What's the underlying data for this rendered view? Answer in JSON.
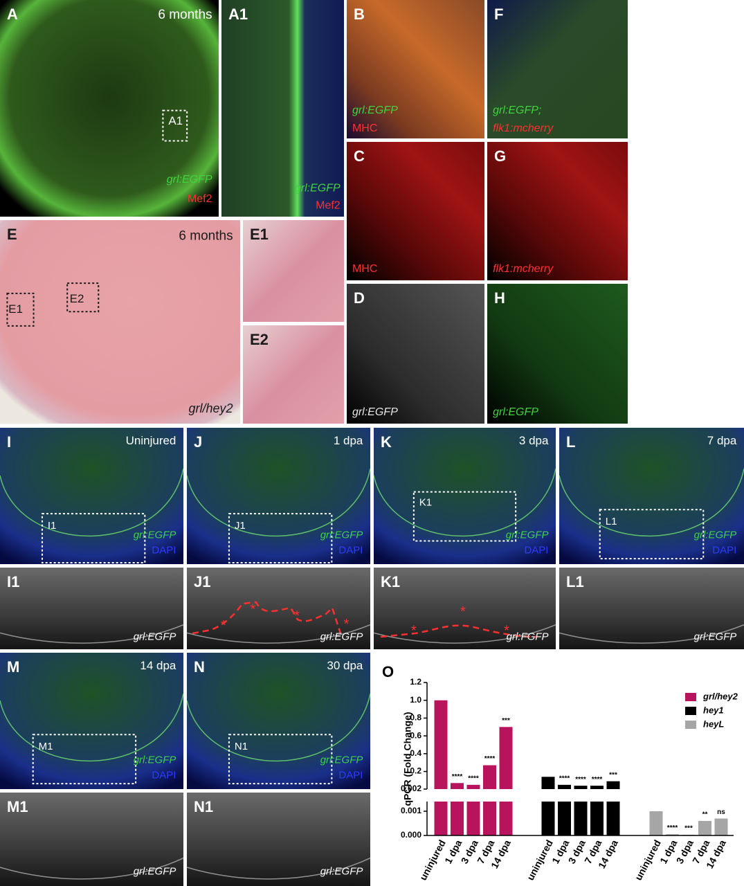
{
  "panels": [
    {
      "label": "A",
      "texts": [
        "6 months",
        "grl:EGFP",
        "Mef2",
        "A1"
      ]
    },
    {
      "label": "A1",
      "texts": [
        "grl:EGFP",
        "Mef2"
      ]
    },
    {
      "label": "B",
      "texts": [
        "grl:EGFP",
        "MHC"
      ]
    },
    {
      "label": "F",
      "texts": [
        "grl:EGFP;",
        "flk1:mcherry"
      ]
    },
    {
      "label": "C",
      "texts": [
        "MHC"
      ]
    },
    {
      "label": "G",
      "texts": [
        "flk1:mcherry"
      ]
    },
    {
      "label": "D",
      "texts": [
        "grl:EGFP"
      ]
    },
    {
      "label": "H",
      "texts": [
        "grl:EGFP"
      ]
    },
    {
      "label": "E",
      "texts": [
        "6 months",
        "grl/hey2",
        "E1",
        "E2"
      ]
    },
    {
      "label": "E1",
      "texts": []
    },
    {
      "label": "E2",
      "texts": []
    },
    {
      "label": "I",
      "texts": [
        "Uninjured",
        "grl:EGFP",
        "DAPI",
        "I1"
      ]
    },
    {
      "label": "J",
      "texts": [
        "1 dpa",
        "grl:EGFP",
        "DAPI",
        "J1"
      ]
    },
    {
      "label": "K",
      "texts": [
        "3 dpa",
        "grl:EGFP",
        "DAPI",
        "K1"
      ]
    },
    {
      "label": "L",
      "texts": [
        "7 dpa",
        "grl:EGFP",
        "DAPI",
        "L1"
      ]
    },
    {
      "label": "I1",
      "texts": [
        "grl:EGFP"
      ]
    },
    {
      "label": "J1",
      "texts": [
        "grl:EGFP",
        "*",
        "*",
        "*",
        "*"
      ]
    },
    {
      "label": "K1",
      "texts": [
        "grl:FGFP",
        "*",
        "*",
        "*"
      ]
    },
    {
      "label": "L1",
      "texts": [
        "grl:EGFP"
      ]
    },
    {
      "label": "M",
      "texts": [
        "14 dpa",
        "grl:EGFP",
        "DAPI",
        "M1"
      ]
    },
    {
      "label": "N",
      "texts": [
        "30 dpa",
        "grl:EGFP",
        "DAPI",
        "N1"
      ]
    },
    {
      "label": "M1",
      "texts": [
        "grl:EGFP"
      ]
    },
    {
      "label": "N1",
      "texts": [
        "grl:EGFP"
      ]
    }
  ],
  "chart_data": {
    "type": "bar",
    "panel_label": "O",
    "y_label": "qPCR (Fold Change)",
    "categories": [
      "uninjured",
      "1 dpa",
      "3 dpa",
      "7 dpa",
      "14 dpa"
    ],
    "series": [
      {
        "name": "grl/hey2",
        "color": "#b8145e",
        "axis": "upper",
        "values": [
          1.0,
          0.07,
          0.05,
          0.27,
          0.7
        ],
        "sig_labels": [
          null,
          "****",
          "****",
          "****",
          "***"
        ]
      },
      {
        "name": "hey1",
        "color": "#000000",
        "axis": "upper",
        "values": [
          0.14,
          0.05,
          0.04,
          0.04,
          0.09
        ],
        "sig_labels": [
          null,
          "****",
          "****",
          "****",
          "***"
        ]
      },
      {
        "name": "heyL",
        "color": "#a6a6a6",
        "axis": "lower",
        "values": [
          0.001,
          5e-05,
          3e-05,
          0.0006,
          0.0007
        ],
        "sig_labels": [
          null,
          "****",
          "***",
          "**",
          "ns"
        ]
      }
    ],
    "ylim": [
      0.002,
      1.2
    ],
    "yticks": [
      0.002,
      0.2,
      0.4,
      0.6,
      0.8,
      {
        "value": 1,
        "label": "1.0"
      },
      {
        "value": 1.2,
        "label": "1.2"
      }
    ],
    "ylim_lower": [
      0,
      0.0014
    ],
    "yticks_lower": [
      {
        "value": 0,
        "label": "0.000"
      },
      0.001
    ],
    "legend": "top-right"
  }
}
